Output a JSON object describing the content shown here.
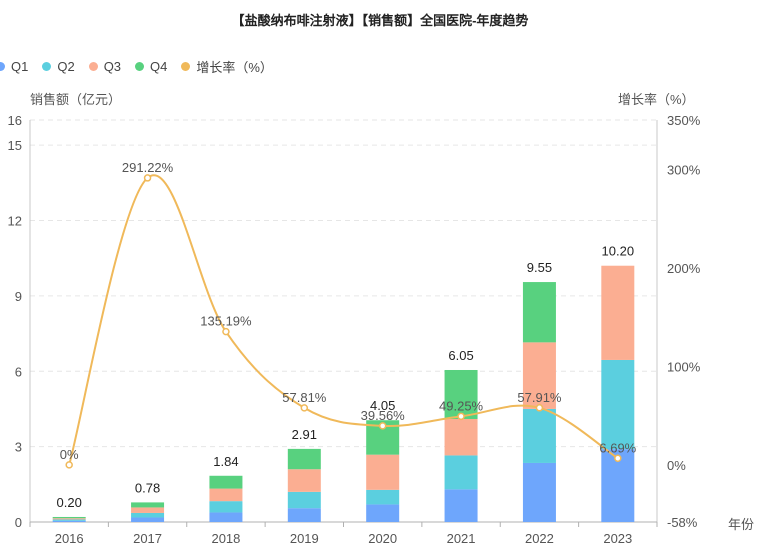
{
  "chart_data": {
    "type": "bar",
    "title": "【盐酸纳布啡注射液】【销售额】全国医院-年度趋势",
    "categories": [
      "2016",
      "2017",
      "2018",
      "2019",
      "2020",
      "2021",
      "2022",
      "2023"
    ],
    "series": [
      {
        "name": "Q1",
        "color": "#6ea6fc",
        "values": [
          0.05,
          0.18,
          0.38,
          0.55,
          0.7,
          1.3,
          2.35,
          2.9
        ]
      },
      {
        "name": "Q2",
        "color": "#5bcfdf",
        "values": [
          0.05,
          0.18,
          0.45,
          0.65,
          0.58,
          1.35,
          2.15,
          3.55
        ]
      },
      {
        "name": "Q3",
        "color": "#fbae92",
        "values": [
          0.05,
          0.22,
          0.5,
          0.9,
          1.4,
          1.45,
          2.65,
          3.75
        ]
      },
      {
        "name": "Q4",
        "color": "#58d17f",
        "values": [
          0.05,
          0.2,
          0.51,
          0.81,
          1.37,
          1.95,
          2.4,
          0
        ]
      }
    ],
    "totals": [
      "0.20",
      "0.78",
      "1.84",
      "2.91",
      "4.05",
      "6.05",
      "9.55",
      "10.20"
    ],
    "growth": {
      "name": "增长率（%）",
      "color": "#f0b95a",
      "values": [
        0,
        291.22,
        135.19,
        57.81,
        39.56,
        49.25,
        57.91,
        6.69
      ],
      "labels": [
        "0%",
        "291.22%",
        "135.19%",
        "57.81%",
        "39.56%",
        "49.25%",
        "57.91%",
        "6.69%"
      ]
    },
    "ylabel": "销售额（亿元）",
    "y2label": "增长率（%）",
    "xlabel": "年份",
    "ylim": [
      0,
      16
    ],
    "yticks": [
      "0",
      "3",
      "6",
      "9",
      "12",
      "15",
      "16"
    ],
    "y2lim": [
      -58,
      350
    ],
    "y2ticks": [
      "-58%",
      "0%",
      "100%",
      "200%",
      "300%",
      "350%"
    ]
  },
  "legend": {
    "q1": "Q1",
    "q2": "Q2",
    "q3": "Q3",
    "q4": "Q4",
    "growth": "增长率（%）"
  }
}
